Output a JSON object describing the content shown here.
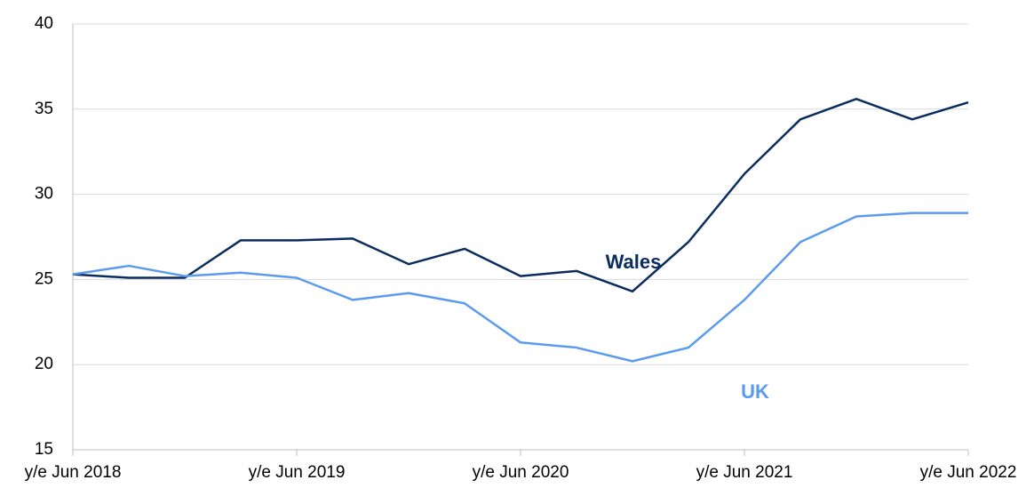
{
  "chart_data": {
    "type": "line",
    "categories": [
      "y/e Jun 2018",
      null,
      null,
      null,
      "y/e Jun 2019",
      null,
      null,
      null,
      "y/e Jun 2020",
      null,
      null,
      null,
      "y/e Jun 2021",
      null,
      null,
      null,
      "y/e Jun 2022"
    ],
    "series": [
      {
        "name": "Wales",
        "color": "#0b2c5f",
        "values": [
          25.3,
          25.1,
          25.1,
          27.3,
          27.3,
          27.4,
          25.9,
          26.8,
          25.2,
          25.5,
          24.3,
          27.2,
          31.2,
          34.4,
          35.6,
          34.4,
          35.4
        ]
      },
      {
        "name": "UK",
        "color": "#5b9bef",
        "values": [
          25.3,
          25.8,
          25.2,
          25.4,
          25.1,
          23.8,
          24.2,
          23.6,
          21.3,
          21.0,
          20.2,
          21.0,
          23.8,
          27.2,
          28.7,
          28.9,
          28.9
        ]
      }
    ],
    "ylim": [
      15,
      40
    ],
    "yticks": [
      15,
      20,
      25,
      30,
      35,
      40
    ],
    "grid": true
  }
}
